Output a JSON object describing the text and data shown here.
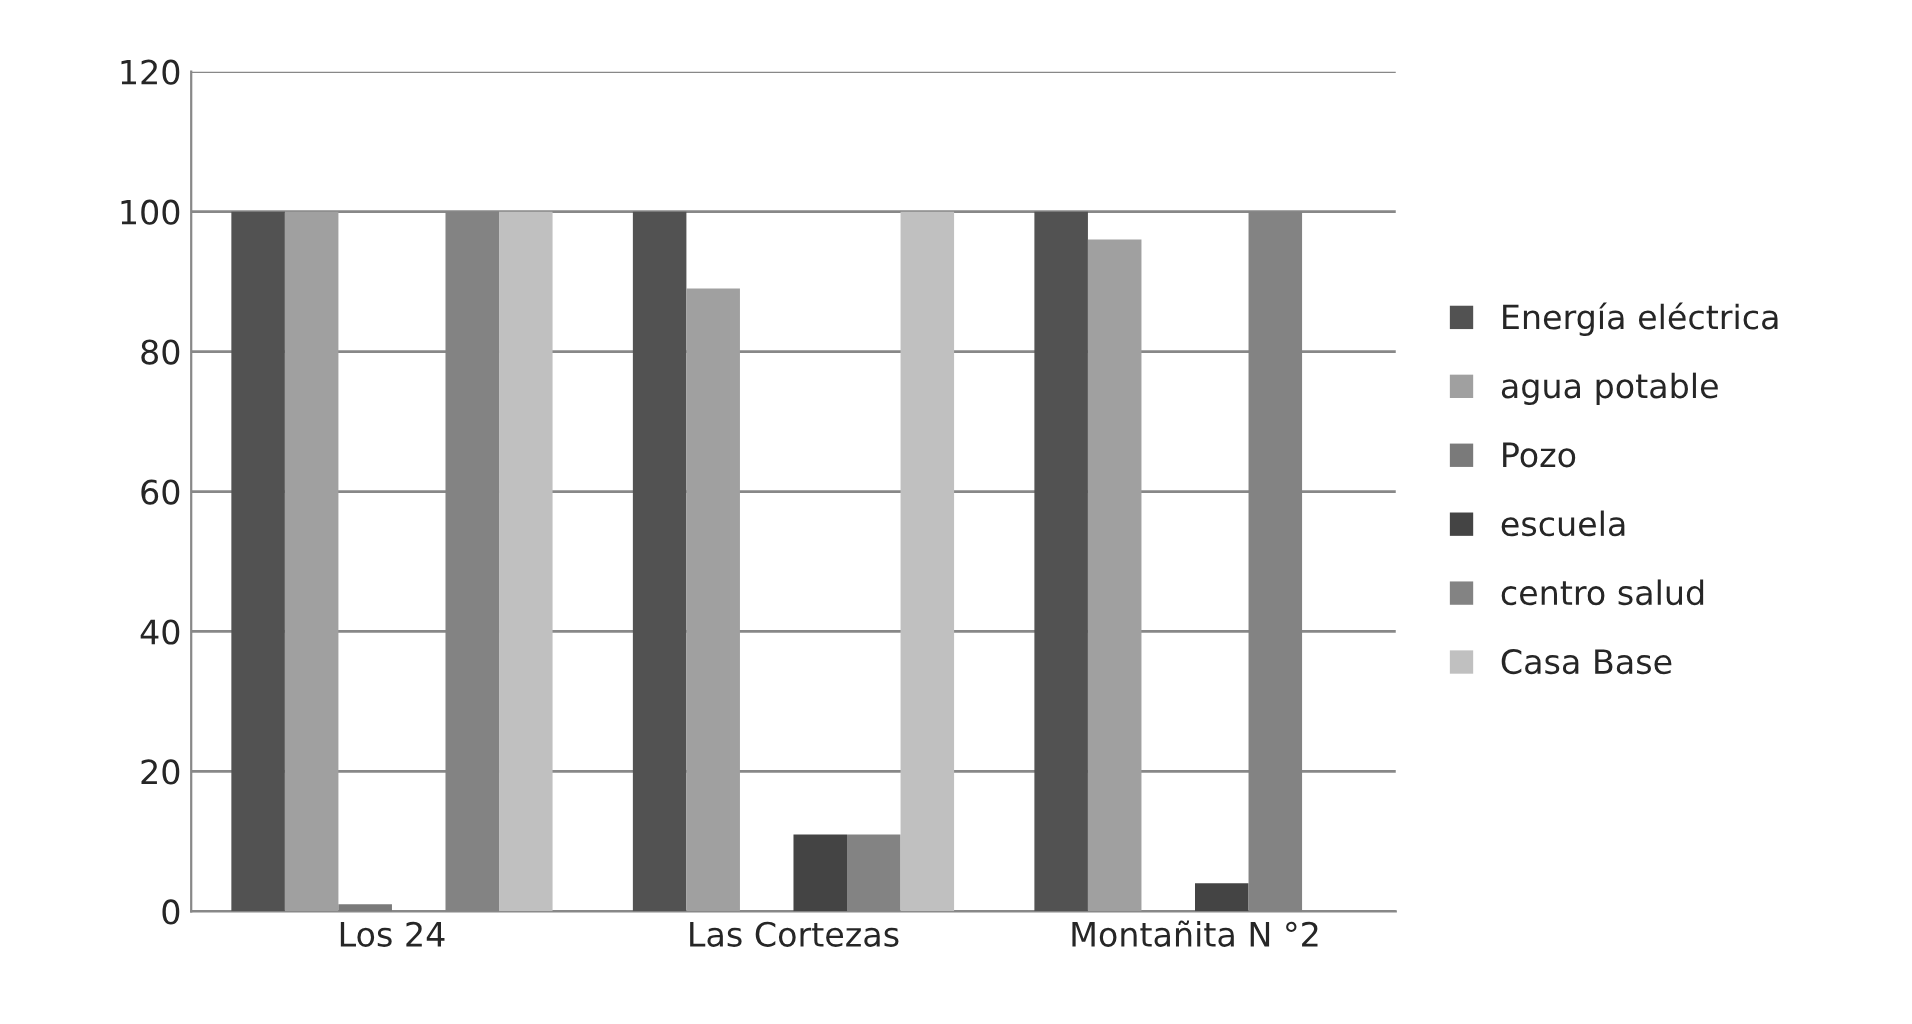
{
  "chart_data": {
    "type": "bar",
    "categories": [
      "Los 24",
      "Las Cortezas",
      "Montañita N °2"
    ],
    "series": [
      {
        "name": "Energía eléctrica",
        "color": "#525252",
        "values": [
          100,
          100,
          100
        ]
      },
      {
        "name": "agua potable",
        "color": "#a0a0a0",
        "values": [
          100,
          89,
          96
        ]
      },
      {
        "name": "Pozo",
        "color": "#7a7a7a",
        "values": [
          1,
          null,
          null
        ]
      },
      {
        "name": "escuela",
        "color": "#444444",
        "values": [
          null,
          11,
          4
        ]
      },
      {
        "name": "centro salud",
        "color": "#838383",
        "values": [
          100,
          11,
          100
        ]
      },
      {
        "name": "Casa Base",
        "color": "#c0c0c0",
        "values": [
          100,
          100,
          null
        ]
      }
    ],
    "ylim": [
      0,
      120
    ],
    "yticks": [
      0,
      20,
      40,
      60,
      80,
      100,
      120
    ],
    "grid": "y",
    "legend": "right"
  }
}
